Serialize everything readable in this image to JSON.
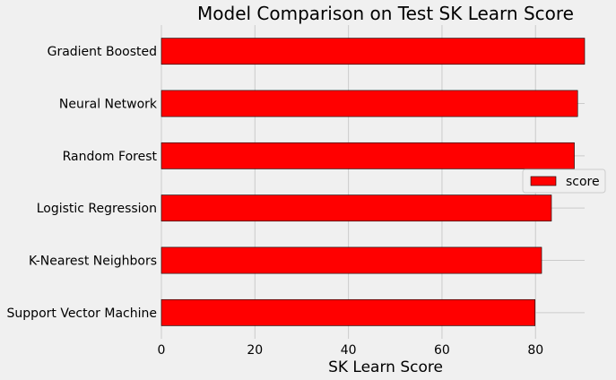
{
  "chart_data": {
    "type": "bar",
    "orientation": "horizontal",
    "title": "Model Comparison on Test SK Learn Score",
    "xlabel": "SK Learn Score",
    "ylabel": "",
    "categories": [
      "Gradient Boosted",
      "Neural Network",
      "Random Forest",
      "Logistic Regression",
      "K-Nearest Neighbors",
      "Support Vector Machine"
    ],
    "series": [
      {
        "name": "score",
        "values": [
          90.5,
          89.0,
          88.3,
          83.4,
          81.3,
          79.9
        ],
        "color": "#ff0000"
      }
    ],
    "xlim": [
      0,
      90.5
    ],
    "xticks": [
      "0",
      "20",
      "40",
      "60",
      "80"
    ],
    "grid": true,
    "legend": "center-right"
  },
  "colors": {
    "background": "#f0f0f0",
    "grid": "#cbcbcb",
    "bar": "#ff0000",
    "bar_edge": "#000000"
  }
}
